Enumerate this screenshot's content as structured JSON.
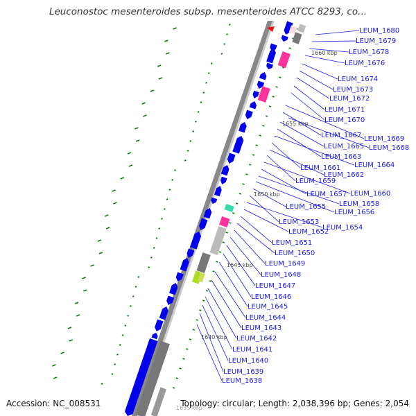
{
  "title": "Leuconostoc mesenteroides subsp. mesenteroides ATCC 8293, co...",
  "accession_text": "Accession: NC_008531",
  "info_text": "Topology: circular; Length: 2,038,396 bp; Genes: 2,054",
  "kbp_marks": [
    "1635 kbp",
    "1640 kbp",
    "1645 kbp",
    "1650 kbp",
    "1655 kbp",
    "1660 kbp"
  ],
  "gene_labels": [
    "LEUM_1680",
    "LEUM_1679",
    "LEUM_1678",
    "LEUM_1676",
    "LEUM_1674",
    "LEUM_1673",
    "LEUM_1672",
    "LEUM_1671",
    "LEUM_1670",
    "LEUM_1669",
    "LEUM_1667",
    "LEUM_1668",
    "LEUM_1665",
    "LEUM_1663",
    "LEUM_1664",
    "LEUM_1661",
    "LEUM_1662",
    "LEUM_1659",
    "LEUM_1660",
    "LEUM_1657",
    "LEUM_1658",
    "LEUM_1656",
    "LEUM_1655",
    "LEUM_1653",
    "LEUM_1654",
    "LEUM_1652",
    "LEUM_1651",
    "LEUM_1650",
    "LEUM_1649",
    "LEUM_1648",
    "LEUM_1647",
    "LEUM_1646",
    "LEUM_1645",
    "LEUM_1644",
    "LEUM_1643",
    "LEUM_1642",
    "LEUM_1641",
    "LEUM_1640",
    "LEUM_1639",
    "LEUM_1638"
  ],
  "colors": {
    "cds": "#0000ee",
    "rrna": "#ff3399",
    "trna": "#33ddaa",
    "other": "#777777",
    "misc": "#bbbbbb",
    "yellowgreen": "#aadd22",
    "gc_skew": "#117711",
    "backbone": "#888888",
    "label": "#1a1ae6"
  }
}
